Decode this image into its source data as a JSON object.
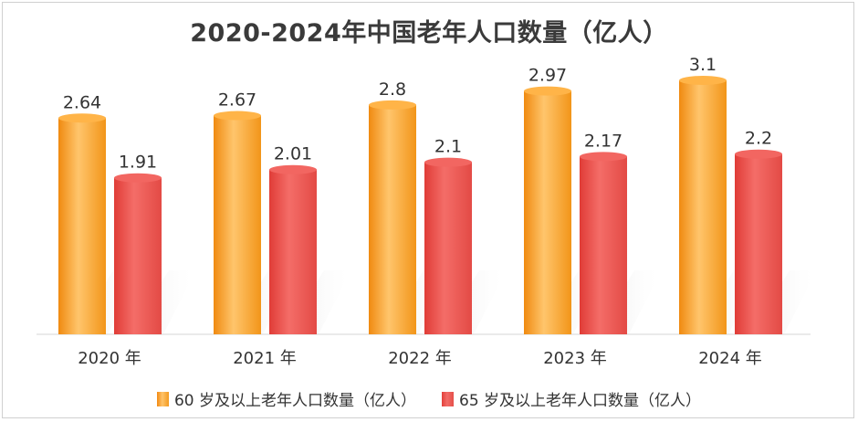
{
  "chart_data": {
    "type": "bar",
    "title": "2020-2024年中国老年人口数量（亿人）",
    "categories": [
      "2020 年",
      "2021 年",
      "2022 年",
      "2023 年",
      "2024 年"
    ],
    "series": [
      {
        "name": "60 岁及以上老年人口数量（亿人）",
        "values": [
          2.64,
          2.67,
          2.8,
          2.97,
          3.1
        ],
        "labels": [
          "2.64",
          "2.67",
          "2.8",
          "2.97",
          "3.1"
        ],
        "color": "#f7a02a"
      },
      {
        "name": "65 岁及以上老年人口数量（亿人）",
        "values": [
          1.91,
          2.01,
          2.1,
          2.17,
          2.2
        ],
        "labels": [
          "1.91",
          "2.01",
          "2.1",
          "2.17",
          "2.2"
        ],
        "color": "#ee5550"
      }
    ],
    "xlabel": "",
    "ylabel": "",
    "ylim": [
      0,
      3.2
    ],
    "grid": false,
    "legend": "bottom"
  }
}
